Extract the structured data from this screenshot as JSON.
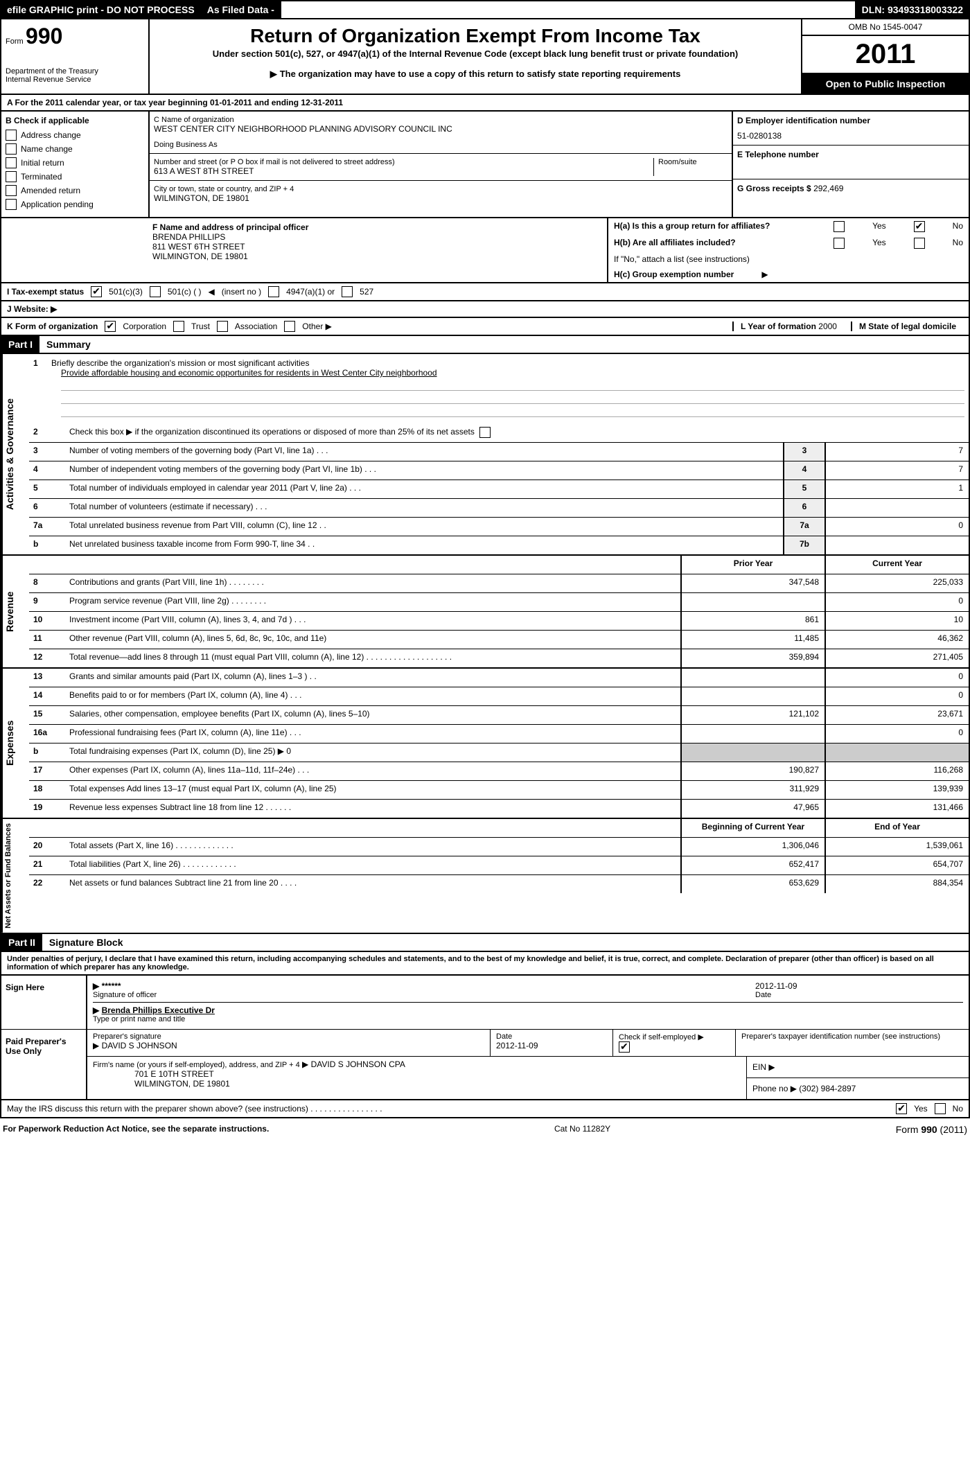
{
  "topbar": {
    "efile": "efile GRAPHIC print - DO NOT PROCESS",
    "asfiled": "As Filed Data -",
    "dln_label": "DLN:",
    "dln": "93493318003322"
  },
  "header": {
    "form_label": "Form",
    "form_num": "990",
    "dept": "Department of the Treasury",
    "irs": "Internal Revenue Service",
    "title": "Return of Organization Exempt From Income Tax",
    "sub1": "Under section 501(c), 527, or 4947(a)(1) of the Internal Revenue Code (except black lung benefit trust or private foundation)",
    "sub2": "The organization may have to use a copy of this return to satisfy state reporting requirements",
    "omb": "OMB No 1545-0047",
    "year": "2011",
    "inspect": "Open to Public Inspection"
  },
  "row_a": "A  For the 2011 calendar year, or tax year beginning 01-01-2011    and ending 12-31-2011",
  "col_b": {
    "header": "B  Check if applicable",
    "items": [
      "Address change",
      "Name change",
      "Initial return",
      "Terminated",
      "Amended return",
      "Application pending"
    ]
  },
  "col_c": {
    "name_label": "C Name of organization",
    "name": "WEST CENTER CITY NEIGHBORHOOD PLANNING ADVISORY COUNCIL INC",
    "dba_label": "Doing Business As",
    "street_label": "Number and street (or P O  box if mail is not delivered to street address)",
    "room_label": "Room/suite",
    "street": "613 A WEST 8TH STREET",
    "city_label": "City or town, state or country, and ZIP + 4",
    "city": "WILMINGTON, DE  19801",
    "f_label": "F   Name and address of principal officer",
    "f_name": "BRENDA PHILLIPS",
    "f_street": "811 WEST 6TH STREET",
    "f_city": "WILMINGTON, DE  19801"
  },
  "col_d": {
    "ein_label": "D Employer identification number",
    "ein": "51-0280138",
    "tel_label": "E Telephone number",
    "gross_label": "G Gross receipts $",
    "gross": "292,469"
  },
  "col_h": {
    "ha_label": "H(a)  Is this a group return for affiliates?",
    "hb_label": "H(b)  Are all affiliates included?",
    "hb_note": "If \"No,\" attach a list  (see instructions)",
    "hc_label": "H(c)   Group exemption number",
    "yes": "Yes",
    "no": "No"
  },
  "row_i": {
    "label": "I   Tax-exempt status",
    "opts": [
      "501(c)(3)",
      "501(c) (    )",
      "(insert no )",
      "4947(a)(1) or",
      "527"
    ]
  },
  "row_j": "J   Website: ▶",
  "row_k": {
    "label": "K Form of organization",
    "opts": [
      "Corporation",
      "Trust",
      "Association",
      "Other ▶"
    ],
    "l_label": "L Year of formation",
    "l_val": "2000",
    "m_label": "M State of legal domicile"
  },
  "parts": {
    "p1": "Part I",
    "p1_title": "Summary",
    "p2": "Part II",
    "p2_title": "Signature Block"
  },
  "vert": {
    "ag": "Activities & Governance",
    "rev": "Revenue",
    "exp": "Expenses",
    "nab": "Net Assets or Fund Balances"
  },
  "summary": {
    "l1_label": "Briefly describe the organization's mission or most significant activities",
    "l1_text": "Provide affordable housing and economic opportunites for residents in West Center City neighborhood",
    "l2": "Check this box ▶      if the organization discontinued its operations or disposed of more than 25% of its net assets",
    "l3": "Number of voting members of the governing body (Part VI, line 1a)  .   .   .",
    "l4": "Number of independent voting members of the governing body (Part VI, line 1b)   .   .   .",
    "l5": "Total number of individuals employed in calendar year 2011 (Part V, line 2a)   .   .   .",
    "l6": "Total number of volunteers (estimate if necessary)   .   .   .",
    "l7a": "Total unrelated business revenue from Part VIII, column (C), line 12   .   .",
    "l7b": "Net unrelated business taxable income from Form 990-T, line 34   .   .",
    "v3": "7",
    "v4": "7",
    "v5": "1",
    "v6": "",
    "v7a": "0",
    "v7b": ""
  },
  "cols": {
    "prior": "Prior Year",
    "current": "Current Year",
    "boy": "Beginning of Current Year",
    "eoy": "End of Year"
  },
  "rev": [
    {
      "n": "8",
      "d": "Contributions and grants (Part VIII, line 1h)   .   .   .   .   .   .   .   .",
      "p": "347,548",
      "c": "225,033"
    },
    {
      "n": "9",
      "d": "Program service revenue (Part VIII, line 2g)   .   .   .   .   .   .   .   .",
      "p": "",
      "c": "0"
    },
    {
      "n": "10",
      "d": "Investment income (Part VIII, column (A), lines 3, 4, and 7d )   .   .   .",
      "p": "861",
      "c": "10"
    },
    {
      "n": "11",
      "d": "Other revenue (Part VIII, column (A), lines 5, 6d, 8c, 9c, 10c, and 11e)",
      "p": "11,485",
      "c": "46,362"
    },
    {
      "n": "12",
      "d": "Total revenue—add lines 8 through 11 (must equal Part VIII, column (A), line 12)   .   .   .   .   .   .   .   .   .   .   .   .   .   .   .   .   .   .   .",
      "p": "359,894",
      "c": "271,405"
    }
  ],
  "exp": [
    {
      "n": "13",
      "d": "Grants and similar amounts paid (Part IX, column (A), lines 1–3 )   .   .",
      "p": "",
      "c": "0"
    },
    {
      "n": "14",
      "d": "Benefits paid to or for members (Part IX, column (A), line 4)   .   .   .",
      "p": "",
      "c": "0"
    },
    {
      "n": "15",
      "d": "Salaries, other compensation, employee benefits (Part IX, column (A), lines 5–10)",
      "p": "121,102",
      "c": "23,671"
    },
    {
      "n": "16a",
      "d": "Professional fundraising fees (Part IX, column (A), line 11e)   .   .   .",
      "p": "",
      "c": "0"
    },
    {
      "n": "b",
      "d": "Total fundraising expenses (Part IX, column (D), line 25) ▶ 0",
      "p": "shade",
      "c": "shade"
    },
    {
      "n": "17",
      "d": "Other expenses (Part IX, column (A), lines 11a–11d, 11f–24e)   .   .   .",
      "p": "190,827",
      "c": "116,268"
    },
    {
      "n": "18",
      "d": "Total expenses  Add lines 13–17 (must equal Part IX, column (A), line 25)",
      "p": "311,929",
      "c": "139,939"
    },
    {
      "n": "19",
      "d": "Revenue less expenses  Subtract line 18 from line 12   .   .   .   .   .   .",
      "p": "47,965",
      "c": "131,466"
    }
  ],
  "nab": [
    {
      "n": "20",
      "d": "Total assets (Part X, line 16)   .   .   .   .   .   .   .   .   .   .   .   .   .",
      "p": "1,306,046",
      "c": "1,539,061"
    },
    {
      "n": "21",
      "d": "Total liabilities (Part X, line 26)   .   .   .   .   .   .   .   .   .   .   .   .",
      "p": "652,417",
      "c": "654,707"
    },
    {
      "n": "22",
      "d": "Net assets or fund balances  Subtract line 21 from line 20   .   .   .   .",
      "p": "653,629",
      "c": "884,354"
    }
  ],
  "sig": {
    "perjury": "Under penalties of perjury, I declare that I have examined this return, including accompanying schedules and statements, and to the best of my knowledge and belief, it is true, correct, and complete. Declaration of preparer (other than officer) is based on all information of which preparer has any knowledge.",
    "sign_here": "Sign Here",
    "sig_officer": "Signature of officer",
    "stars": "******",
    "date": "Date",
    "date_val": "2012-11-09",
    "name_title": "Brenda Phillips Executive Dr",
    "type_print": "Type or print name and title",
    "paid": "Paid Preparer's Use Only",
    "prep_sig": "Preparer's signature",
    "prep_name": "DAVID S JOHNSON",
    "prep_date": "2012-11-09",
    "check_self": "Check if self-employed ▶",
    "ptin": "Preparer's taxpayer identification number (see instructions)",
    "firm_label": "Firm's name (or yours if self-employed), address, and ZIP + 4",
    "firm_name": "DAVID S JOHNSON CPA",
    "firm_addr": "701 E 10TH STREET",
    "firm_city": "WILMINGTON, DE  19801",
    "ein": "EIN ▶",
    "phone": "Phone no  ▶",
    "phone_val": "(302) 984-2897",
    "discuss": "May the IRS discuss this return with the preparer shown above? (see instructions)   .   .   .   .   .   .   .   .   .   .   .   .   .   .   .   ."
  },
  "footer": {
    "pra": "For Paperwork Reduction Act Notice, see the separate instructions.",
    "cat": "Cat No  11282Y",
    "form": "Form 990 (2011)"
  }
}
